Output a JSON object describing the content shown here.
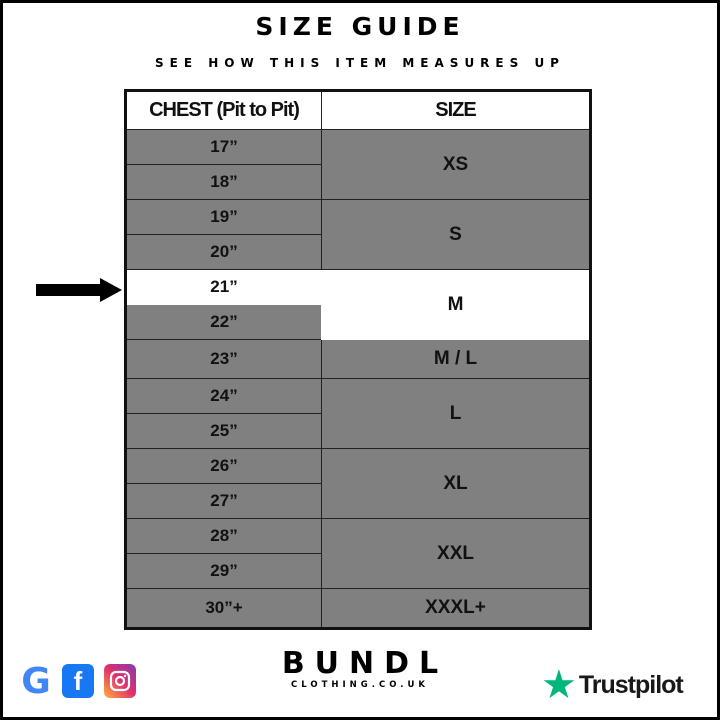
{
  "header": {
    "title": "SIZE GUIDE",
    "subtitle": "SEE HOW THIS ITEM MEASURES UP"
  },
  "table": {
    "columns": [
      "CHEST (Pit to Pit)",
      "SIZE"
    ],
    "chest": [
      "17”",
      "18”",
      "19”",
      "20”",
      "21”",
      "22”",
      "23”",
      "24”",
      "25”",
      "26”",
      "27”",
      "28”",
      "29”",
      "30”+"
    ],
    "sizes": [
      "XS",
      "S",
      "M",
      "M / L",
      "L",
      "XL",
      "XXL",
      "XXXL+"
    ],
    "highlighted_chest": "21”",
    "highlighted_size": "M",
    "row_color": "#808080",
    "highlight_color": "#ffffff"
  },
  "footer": {
    "social": [
      "google-icon",
      "facebook-icon",
      "instagram-icon"
    ],
    "brand_name": "BUNDL",
    "brand_domain": "CLOTHING.CO.UK",
    "trustpilot": "Trustpilot",
    "trustpilot_color": "#00b67a"
  }
}
